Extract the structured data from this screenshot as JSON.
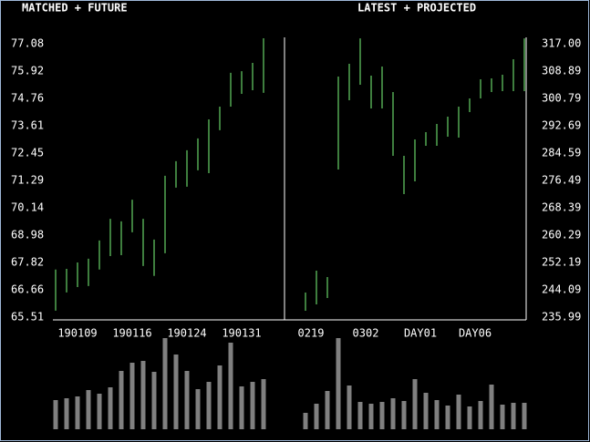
{
  "chart_data": [
    {
      "type": "range",
      "title": "MATCHED + FUTURE",
      "axis": "left",
      "color": "#7CFC7C",
      "volume_color": "#808080",
      "categories": [
        null,
        null,
        "190109",
        null,
        null,
        null,
        null,
        "190116",
        null,
        null,
        null,
        null,
        "190124",
        null,
        null,
        null,
        null,
        "190131",
        null,
        null
      ],
      "high": [
        67.52,
        67.55,
        67.82,
        67.98,
        68.75,
        69.67,
        69.56,
        70.48,
        69.67,
        68.79,
        71.49,
        72.11,
        72.57,
        73.07,
        73.88,
        74.42,
        75.85,
        75.92,
        76.27,
        77.31
      ],
      "low": [
        65.78,
        66.55,
        66.78,
        66.82,
        67.52,
        68.09,
        68.13,
        69.1,
        67.67,
        67.25,
        68.21,
        70.99,
        71.03,
        71.72,
        71.6,
        73.42,
        74.42,
        74.96,
        75.11,
        75.0
      ],
      "volume": [
        32,
        34,
        36,
        43,
        39,
        46,
        64,
        73,
        75,
        63,
        100,
        82,
        64,
        44,
        52,
        70,
        95,
        47,
        52,
        55
      ],
      "ylim": [
        65.39,
        77.35
      ],
      "yticks": [
        77.08,
        75.92,
        74.76,
        73.61,
        72.45,
        71.29,
        70.14,
        68.98,
        67.82,
        66.66,
        65.51
      ],
      "vlim": [
        0,
        100
      ]
    },
    {
      "type": "range",
      "title": "LATEST + PROJECTED",
      "axis": "right",
      "color": "#7CFC7C",
      "volume_color": "#808080",
      "categories": [
        "0219",
        null,
        null,
        null,
        null,
        "0302",
        null,
        null,
        null,
        null,
        "DAY01",
        null,
        null,
        null,
        null,
        "DAY06",
        null,
        null,
        null,
        null,
        null
      ],
      "high": [
        243.29,
        249.77,
        247.88,
        307.28,
        311.06,
        318.6,
        307.55,
        310.25,
        302.69,
        283.79,
        288.65,
        290.81,
        293.24,
        295.4,
        298.37,
        300.8,
        306.47,
        306.74,
        307.82,
        312.41,
        318.6
      ],
      "low": [
        237.89,
        239.78,
        241.67,
        279.74,
        300.26,
        304.85,
        297.83,
        297.83,
        283.79,
        272.45,
        276.23,
        286.76,
        286.76,
        289.46,
        289.19,
        296.75,
        300.8,
        302.69,
        302.96,
        302.96,
        302.96
      ],
      "volume": [
        18,
        28,
        42,
        100,
        48,
        30,
        28,
        30,
        34,
        31,
        55,
        40,
        32,
        26,
        38,
        25,
        31,
        49,
        27,
        29,
        29
      ],
      "ylim": [
        235.18,
        318.89
      ],
      "yticks": [
        {
          "value": 317,
          "label": "317.00"
        },
        308.89,
        300.79,
        292.69,
        284.59,
        276.49,
        268.39,
        260.29,
        252.19,
        244.09,
        235.99
      ],
      "vlim": [
        0,
        100
      ]
    }
  ]
}
